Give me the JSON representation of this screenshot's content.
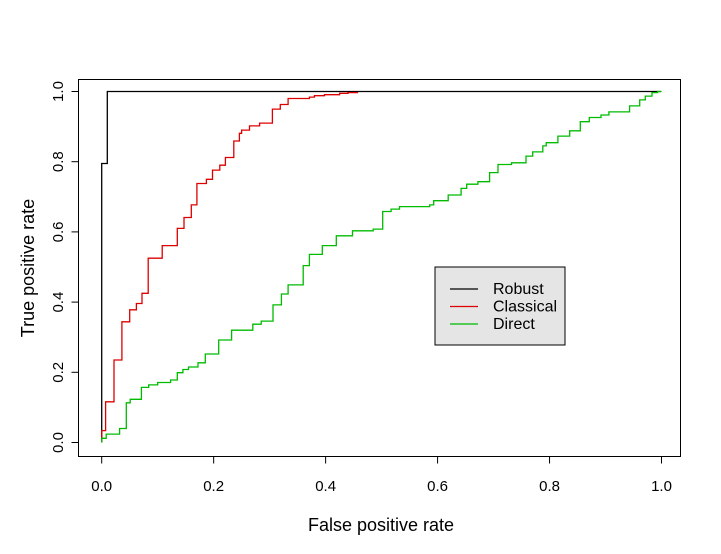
{
  "chart_data": {
    "type": "line",
    "subtype": "roc-step-curves",
    "title": "",
    "xlabel": "False positive rate",
    "ylabel": "True positive rate",
    "xlim": [
      0.0,
      1.0
    ],
    "ylim": [
      0.0,
      1.0
    ],
    "grid": false,
    "background": "#ffffff",
    "x_axis": {
      "ticks": [
        {
          "value": 0.0,
          "label": "0.0"
        },
        {
          "value": 0.2,
          "label": "0.2"
        },
        {
          "value": 0.4,
          "label": "0.4"
        },
        {
          "value": 0.6,
          "label": "0.6"
        },
        {
          "value": 0.8,
          "label": "0.8"
        },
        {
          "value": 1.0,
          "label": "1.0"
        }
      ]
    },
    "y_axis": {
      "ticks": [
        {
          "value": 0.0,
          "label": "0.0"
        },
        {
          "value": 0.2,
          "label": "0.2"
        },
        {
          "value": 0.4,
          "label": "0.4"
        },
        {
          "value": 0.6,
          "label": "0.6"
        },
        {
          "value": 0.8,
          "label": "0.8"
        },
        {
          "value": 1.0,
          "label": "1.0"
        }
      ]
    },
    "legend": {
      "position": "center-right",
      "background": "#E5E5E5",
      "border_color": "#000000"
    },
    "series": [
      {
        "name": "Robust",
        "color": "#000000",
        "points": [
          [
            0,
            0
          ],
          [
            0,
            0.795
          ],
          [
            0.01,
            0.795
          ],
          [
            0.01,
            1
          ],
          [
            1,
            1
          ]
        ]
      },
      {
        "name": "Classical",
        "color": "#DD0000",
        "points": [
          [
            0,
            0
          ],
          [
            0,
            0.034
          ],
          [
            0.007,
            0.034
          ],
          [
            0.007,
            0.116
          ],
          [
            0.022,
            0.116
          ],
          [
            0.022,
            0.235
          ],
          [
            0.036,
            0.235
          ],
          [
            0.036,
            0.344
          ],
          [
            0.05,
            0.344
          ],
          [
            0.05,
            0.378
          ],
          [
            0.062,
            0.378
          ],
          [
            0.062,
            0.396
          ],
          [
            0.072,
            0.396
          ],
          [
            0.072,
            0.425
          ],
          [
            0.083,
            0.425
          ],
          [
            0.083,
            0.525
          ],
          [
            0.108,
            0.525
          ],
          [
            0.108,
            0.561
          ],
          [
            0.135,
            0.561
          ],
          [
            0.135,
            0.61
          ],
          [
            0.147,
            0.61
          ],
          [
            0.147,
            0.641
          ],
          [
            0.16,
            0.641
          ],
          [
            0.16,
            0.677
          ],
          [
            0.17,
            0.677
          ],
          [
            0.17,
            0.738
          ],
          [
            0.187,
            0.738
          ],
          [
            0.187,
            0.75
          ],
          [
            0.198,
            0.75
          ],
          [
            0.198,
            0.776
          ],
          [
            0.211,
            0.776
          ],
          [
            0.211,
            0.79
          ],
          [
            0.221,
            0.79
          ],
          [
            0.221,
            0.812
          ],
          [
            0.236,
            0.812
          ],
          [
            0.236,
            0.859
          ],
          [
            0.246,
            0.859
          ],
          [
            0.246,
            0.881
          ],
          [
            0.25,
            0.881
          ],
          [
            0.25,
            0.89
          ],
          [
            0.264,
            0.89
          ],
          [
            0.264,
            0.902
          ],
          [
            0.282,
            0.902
          ],
          [
            0.282,
            0.91
          ],
          [
            0.305,
            0.91
          ],
          [
            0.305,
            0.95
          ],
          [
            0.319,
            0.95
          ],
          [
            0.319,
            0.963
          ],
          [
            0.333,
            0.963
          ],
          [
            0.333,
            0.98
          ],
          [
            0.371,
            0.98
          ],
          [
            0.371,
            0.984
          ],
          [
            0.38,
            0.984
          ],
          [
            0.38,
            0.988
          ],
          [
            0.398,
            0.988
          ],
          [
            0.398,
            0.991
          ],
          [
            0.425,
            0.991
          ],
          [
            0.425,
            0.995
          ],
          [
            0.44,
            0.995
          ],
          [
            0.44,
            0.997
          ],
          [
            0.458,
            0.997
          ]
        ]
      },
      {
        "name": "Direct",
        "color": "#00BB00",
        "points": [
          [
            0,
            0
          ],
          [
            0,
            0.012
          ],
          [
            0.008,
            0.012
          ],
          [
            0.008,
            0.024
          ],
          [
            0.032,
            0.024
          ],
          [
            0.032,
            0.04
          ],
          [
            0.044,
            0.04
          ],
          [
            0.044,
            0.113
          ],
          [
            0.051,
            0.113
          ],
          [
            0.051,
            0.123
          ],
          [
            0.071,
            0.123
          ],
          [
            0.071,
            0.157
          ],
          [
            0.084,
            0.157
          ],
          [
            0.084,
            0.164
          ],
          [
            0.1,
            0.164
          ],
          [
            0.1,
            0.171
          ],
          [
            0.123,
            0.171
          ],
          [
            0.123,
            0.178
          ],
          [
            0.135,
            0.178
          ],
          [
            0.135,
            0.199
          ],
          [
            0.145,
            0.199
          ],
          [
            0.145,
            0.208
          ],
          [
            0.155,
            0.208
          ],
          [
            0.155,
            0.215
          ],
          [
            0.172,
            0.215
          ],
          [
            0.172,
            0.227
          ],
          [
            0.185,
            0.227
          ],
          [
            0.185,
            0.252
          ],
          [
            0.209,
            0.252
          ],
          [
            0.209,
            0.292
          ],
          [
            0.232,
            0.292
          ],
          [
            0.232,
            0.32
          ],
          [
            0.27,
            0.32
          ],
          [
            0.27,
            0.337
          ],
          [
            0.285,
            0.337
          ],
          [
            0.285,
            0.346
          ],
          [
            0.306,
            0.346
          ],
          [
            0.306,
            0.392
          ],
          [
            0.321,
            0.392
          ],
          [
            0.321,
            0.423
          ],
          [
            0.333,
            0.423
          ],
          [
            0.333,
            0.449
          ],
          [
            0.36,
            0.449
          ],
          [
            0.36,
            0.504
          ],
          [
            0.371,
            0.504
          ],
          [
            0.371,
            0.536
          ],
          [
            0.394,
            0.536
          ],
          [
            0.394,
            0.561
          ],
          [
            0.419,
            0.561
          ],
          [
            0.419,
            0.589
          ],
          [
            0.448,
            0.589
          ],
          [
            0.448,
            0.603
          ],
          [
            0.485,
            0.603
          ],
          [
            0.485,
            0.608
          ],
          [
            0.502,
            0.608
          ],
          [
            0.502,
            0.658
          ],
          [
            0.517,
            0.658
          ],
          [
            0.517,
            0.665
          ],
          [
            0.532,
            0.665
          ],
          [
            0.532,
            0.672
          ],
          [
            0.586,
            0.672
          ],
          [
            0.586,
            0.677
          ],
          [
            0.593,
            0.677
          ],
          [
            0.593,
            0.689
          ],
          [
            0.619,
            0.689
          ],
          [
            0.619,
            0.705
          ],
          [
            0.642,
            0.705
          ],
          [
            0.642,
            0.724
          ],
          [
            0.652,
            0.724
          ],
          [
            0.652,
            0.736
          ],
          [
            0.672,
            0.736
          ],
          [
            0.672,
            0.743
          ],
          [
            0.693,
            0.743
          ],
          [
            0.693,
            0.769
          ],
          [
            0.708,
            0.769
          ],
          [
            0.708,
            0.792
          ],
          [
            0.732,
            0.792
          ],
          [
            0.732,
            0.797
          ],
          [
            0.758,
            0.797
          ],
          [
            0.758,
            0.816
          ],
          [
            0.77,
            0.816
          ],
          [
            0.77,
            0.828
          ],
          [
            0.788,
            0.828
          ],
          [
            0.788,
            0.845
          ],
          [
            0.794,
            0.845
          ],
          [
            0.794,
            0.854
          ],
          [
            0.815,
            0.854
          ],
          [
            0.815,
            0.873
          ],
          [
            0.836,
            0.873
          ],
          [
            0.836,
            0.888
          ],
          [
            0.855,
            0.888
          ],
          [
            0.855,
            0.914
          ],
          [
            0.871,
            0.914
          ],
          [
            0.871,
            0.926
          ],
          [
            0.892,
            0.926
          ],
          [
            0.892,
            0.933
          ],
          [
            0.906,
            0.933
          ],
          [
            0.906,
            0.942
          ],
          [
            0.943,
            0.942
          ],
          [
            0.943,
            0.959
          ],
          [
            0.961,
            0.959
          ],
          [
            0.961,
            0.976
          ],
          [
            0.971,
            0.976
          ],
          [
            0.971,
            0.987
          ],
          [
            0.983,
            0.987
          ],
          [
            0.983,
            0.997
          ],
          [
            0.993,
            0.997
          ],
          [
            0.993,
            1
          ],
          [
            1,
            1
          ]
        ]
      }
    ]
  }
}
